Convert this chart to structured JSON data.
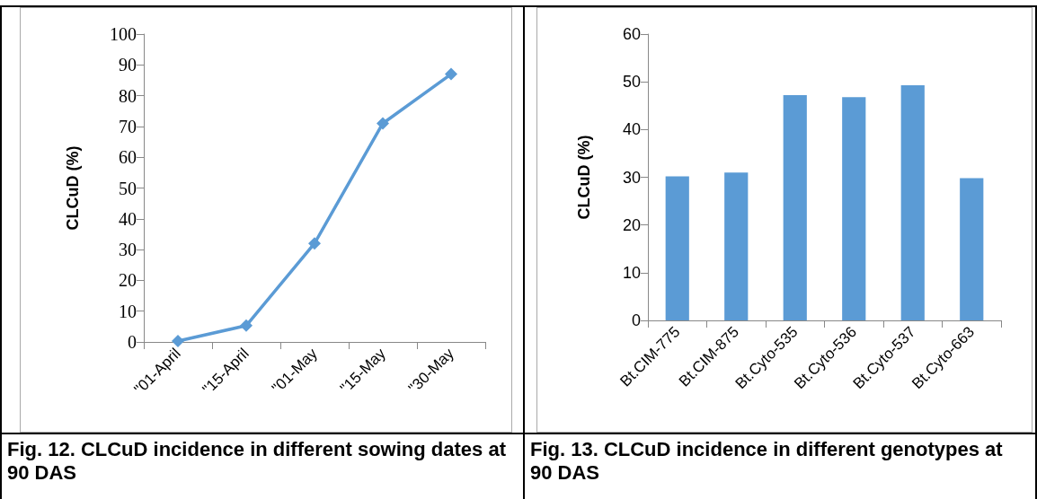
{
  "chart_data": [
    {
      "type": "line",
      "categories": [
        "\"01-April",
        "\"15-April",
        "\"01-May",
        "\"15-May",
        "\"30-May"
      ],
      "values": [
        0.3,
        5.3,
        32,
        71,
        87
      ],
      "color": "#5b9bd5",
      "marker": "diamond",
      "ylabel": "CLCuD (%)",
      "ylim": [
        0,
        100
      ],
      "yticks": [
        0,
        10,
        20,
        30,
        40,
        50,
        60,
        70,
        80,
        90,
        100
      ],
      "annotations": [
        "Fig. 12. CLCuD incidence in different sowing dates at 90 DAS"
      ]
    },
    {
      "type": "bar",
      "categories": [
        "Bt.CIM-775",
        "Bt.CIM-875",
        "Bt.Cyto-535",
        "Bt.Cyto-536",
        "Bt.Cyto-537",
        "Bt.Cyto-663"
      ],
      "values": [
        30.2,
        31,
        47.2,
        46.8,
        49.3,
        29.8
      ],
      "color": "#5b9bd5",
      "ylabel": "CLCuD (%)",
      "ylim": [
        0,
        60
      ],
      "yticks": [
        0,
        10,
        20,
        30,
        40,
        50,
        60
      ],
      "annotations": [
        "Fig. 13. CLCuD incidence in different genotypes at 90 DAS"
      ]
    }
  ]
}
